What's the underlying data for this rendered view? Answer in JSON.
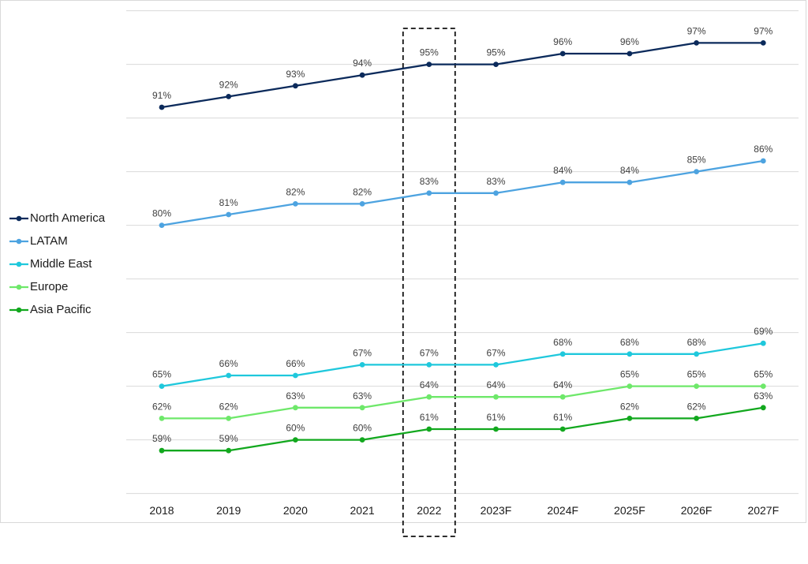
{
  "chart_data": {
    "type": "line",
    "title": "",
    "xlabel": "",
    "ylabel": "",
    "categories": [
      "2018",
      "2019",
      "2020",
      "2021",
      "2022",
      "2023F",
      "2024F",
      "2025F",
      "2026F",
      "2027F"
    ],
    "ylim": [
      55,
      100
    ],
    "grid": true,
    "legend_position": "left",
    "highlighted_category": "2022",
    "series": [
      {
        "name": "North America",
        "color": "#0b2a5b",
        "values": [
          91,
          92,
          93,
          94,
          95,
          95,
          96,
          96,
          97,
          97
        ],
        "labels": [
          "91%",
          "92%",
          "93%",
          "94%",
          "95%",
          "95%",
          "96%",
          "96%",
          "97%",
          "97%"
        ]
      },
      {
        "name": "LATAM",
        "color": "#4da3e0",
        "values": [
          80,
          81,
          82,
          82,
          83,
          83,
          84,
          84,
          85,
          86
        ],
        "labels": [
          "80%",
          "81%",
          "82%",
          "82%",
          "83%",
          "83%",
          "84%",
          "84%",
          "85%",
          "86%"
        ]
      },
      {
        "name": "Middle East",
        "color": "#1fc8dc",
        "values": [
          65,
          66,
          66,
          67,
          67,
          67,
          68,
          68,
          68,
          69
        ],
        "labels": [
          "65%",
          "66%",
          "66%",
          "67%",
          "67%",
          "67%",
          "68%",
          "68%",
          "68%",
          "69%"
        ]
      },
      {
        "name": "Europe",
        "color": "#6ee86a",
        "values": [
          62,
          62,
          63,
          63,
          64,
          64,
          64,
          65,
          65,
          65
        ],
        "labels": [
          "62%",
          "62%",
          "63%",
          "63%",
          "64%",
          "64%",
          "64%",
          "65%",
          "65%",
          "65%"
        ]
      },
      {
        "name": "Asia Pacific",
        "color": "#12a81e",
        "values": [
          59,
          59,
          60,
          60,
          61,
          61,
          61,
          62,
          62,
          63
        ],
        "labels": [
          "59%",
          "59%",
          "60%",
          "60%",
          "61%",
          "61%",
          "61%",
          "62%",
          "62%",
          "63%"
        ]
      }
    ]
  }
}
